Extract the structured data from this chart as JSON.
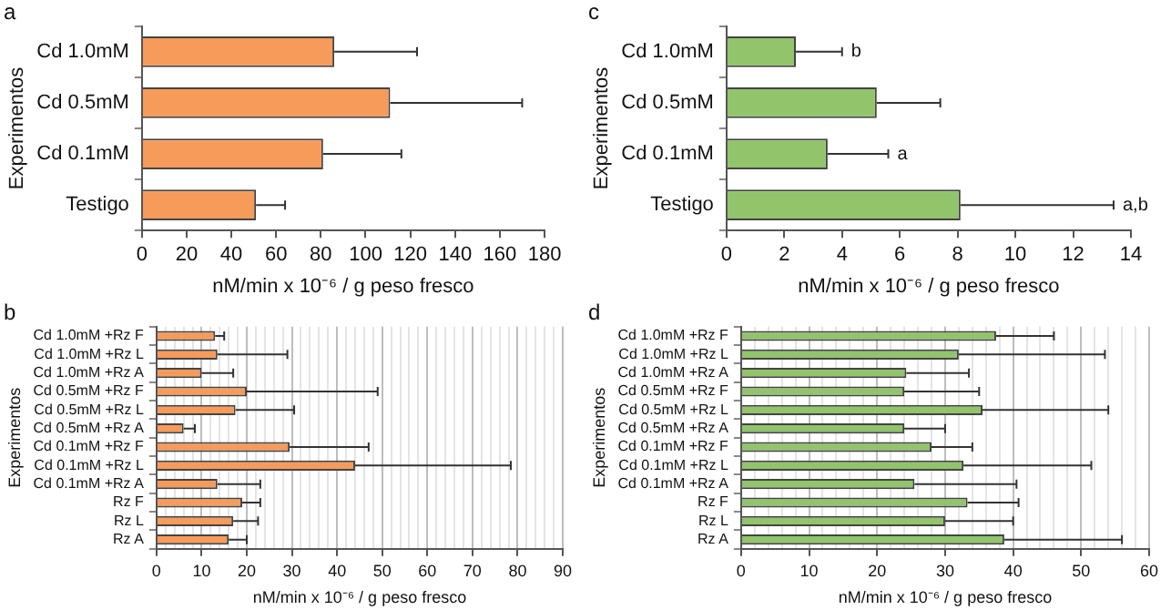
{
  "chart_data": [
    {
      "type": "bar",
      "title": "a",
      "orientation": "horizontal",
      "xlabel": "nM/min x 10⁻⁶ / g peso fresco",
      "ylabel": "Experimentos",
      "categories": [
        "Cd 1.0mM",
        "Cd 0.5mM",
        "Cd 0.1mM",
        "Testigo"
      ],
      "values": [
        86,
        111,
        81,
        51
      ],
      "errors": [
        [
          86,
          123
        ],
        [
          111,
          170
        ],
        [
          81,
          116
        ],
        [
          51,
          64
        ]
      ],
      "color": "#f79b5b",
      "xlim": [
        0,
        180
      ],
      "xticks": [
        0,
        20,
        40,
        60,
        80,
        100,
        120,
        140,
        160,
        180
      ],
      "grid": false,
      "legend": false
    },
    {
      "type": "bar",
      "title": "c",
      "orientation": "horizontal",
      "xlabel": "nM/min x 10⁻⁶ / g peso fresco",
      "ylabel": "Experimentos",
      "categories": [
        "Cd 1.0mM",
        "Cd 0.5mM",
        "Cd 0.1mM",
        "Testigo"
      ],
      "values": [
        2.4,
        5.2,
        3.5,
        8.1
      ],
      "errors": [
        [
          2.4,
          4.0
        ],
        [
          5.2,
          7.4
        ],
        [
          3.5,
          5.6
        ],
        [
          8.1,
          13.4
        ]
      ],
      "color": "#92c46c",
      "xlim": [
        0,
        14
      ],
      "xticks": [
        0,
        2,
        4,
        6,
        8,
        10,
        12,
        14
      ],
      "grid": false,
      "legend": false,
      "annotations": [
        {
          "text": "b",
          "x": 4.0,
          "y": "Cd 1.0mM"
        },
        {
          "text": "a",
          "x": 5.6,
          "y": "Cd 0.1mM"
        },
        {
          "text": "a,b",
          "x": 13.4,
          "y": "Testigo"
        }
      ]
    },
    {
      "type": "bar",
      "title": "b",
      "orientation": "horizontal",
      "xlabel": "nM/min x 10⁻⁶ / g peso fresco",
      "ylabel": "Experimentos",
      "categories": [
        "Cd 1.0mM +Rz F",
        "Cd 1.0mM +Rz L",
        "Cd 1.0mM +Rz A",
        "Cd 0.5mM +Rz F",
        "Cd 0.5mM +Rz L",
        "Cd 0.5mM +Rz A",
        "Cd 0.1mM +Rz F",
        "Cd 0.1mM +Rz L",
        "Cd 0.1mM +Rz A",
        "Rz F",
        "Rz L",
        "Rz A"
      ],
      "values": [
        13,
        13.5,
        10,
        20,
        17.5,
        6,
        29.5,
        44,
        13.5,
        19,
        17,
        16
      ],
      "errors": [
        [
          13,
          15
        ],
        [
          13.5,
          29
        ],
        [
          10,
          17
        ],
        [
          20,
          49
        ],
        [
          17.5,
          30.5
        ],
        [
          6,
          8.5
        ],
        [
          29.5,
          47
        ],
        [
          44,
          78.5
        ],
        [
          13.5,
          23
        ],
        [
          19,
          23
        ],
        [
          17,
          22.5
        ],
        [
          16,
          20
        ]
      ],
      "color": "#f79b5b",
      "xlim": [
        0,
        90
      ],
      "xticks": [
        0,
        {
          "value": 2,
          "label": null
        },
        {
          "value": 4,
          "label": null
        },
        {
          "value": 6,
          "label": null
        },
        {
          "value": 8,
          "label": null
        },
        10,
        {
          "value": 12,
          "label": null
        },
        {
          "value": 14,
          "label": null
        },
        {
          "value": 16,
          "label": null
        },
        {
          "value": 18,
          "label": null
        },
        20,
        {
          "value": 22,
          "label": null
        },
        {
          "value": 24,
          "label": null
        },
        {
          "value": 26,
          "label": null
        },
        {
          "value": 28,
          "label": null
        },
        30,
        {
          "value": 32,
          "label": null
        },
        {
          "value": 34,
          "label": null
        },
        {
          "value": 36,
          "label": null
        },
        {
          "value": 38,
          "label": null
        },
        40,
        {
          "value": 42,
          "label": null
        },
        {
          "value": 44,
          "label": null
        },
        {
          "value": 46,
          "label": null
        },
        {
          "value": 48,
          "label": null
        },
        50,
        {
          "value": 52,
          "label": null
        },
        {
          "value": 54,
          "label": null
        },
        {
          "value": 56,
          "label": null
        },
        {
          "value": 58,
          "label": null
        },
        60,
        {
          "value": 62,
          "label": null
        },
        {
          "value": 64,
          "label": null
        },
        {
          "value": 66,
          "label": null
        },
        {
          "value": 68,
          "label": null
        },
        70,
        {
          "value": 72,
          "label": null
        },
        {
          "value": 74,
          "label": null
        },
        {
          "value": 76,
          "label": null
        },
        {
          "value": 78,
          "label": null
        },
        80,
        {
          "value": 82,
          "label": null
        },
        {
          "value": 84,
          "label": null
        },
        {
          "value": 86,
          "label": null
        },
        {
          "value": 88,
          "label": null
        },
        90
      ],
      "grid": "x",
      "legend": false
    },
    {
      "type": "bar",
      "title": "d",
      "orientation": "horizontal",
      "xlabel": "nM/min x 10⁻⁶ / g peso fresco",
      "ylabel": "Experimentos",
      "categories": [
        "Cd 1.0mM +Rz F",
        "Cd 1.0mM +Rz L",
        "Cd 1.0mM +Rz A",
        "Cd 0.5mM +Rz F",
        "Cd 0.5mM +Rz L",
        "Cd 0.5mM +Rz A",
        "Cd 0.1mM +Rz F",
        "Cd 0.1mM +Rz L",
        "Cd 0.1mM +Rz A",
        "Rz F",
        "Rz L",
        "Rz A"
      ],
      "values": [
        37.5,
        32,
        24.3,
        24,
        35.5,
        24,
        28,
        32.7,
        25.5,
        33.3,
        30,
        38.7
      ],
      "errors": [
        [
          37.5,
          46
        ],
        [
          32,
          53.5
        ],
        [
          24.3,
          33.5
        ],
        [
          24,
          35
        ],
        [
          35.5,
          54
        ],
        [
          24,
          30
        ],
        [
          28,
          34
        ],
        [
          32.7,
          51.5
        ],
        [
          25.5,
          40.5
        ],
        [
          33.3,
          40.8
        ],
        [
          30,
          40
        ],
        [
          38.7,
          56
        ]
      ],
      "color": "#92c46c",
      "xlim": [
        0,
        60
      ],
      "xticks": [
        0,
        {
          "value": 2,
          "label": null
        },
        {
          "value": 4,
          "label": null
        },
        {
          "value": 6,
          "label": null
        },
        {
          "value": 8,
          "label": null
        },
        10,
        {
          "value": 12,
          "label": null
        },
        {
          "value": 14,
          "label": null
        },
        {
          "value": 16,
          "label": null
        },
        {
          "value": 18,
          "label": null
        },
        20,
        {
          "value": 22,
          "label": null
        },
        {
          "value": 24,
          "label": null
        },
        {
          "value": 26,
          "label": null
        },
        {
          "value": 28,
          "label": null
        },
        30,
        {
          "value": 32,
          "label": null
        },
        {
          "value": 34,
          "label": null
        },
        {
          "value": 36,
          "label": null
        },
        {
          "value": 38,
          "label": null
        },
        40,
        {
          "value": 42,
          "label": null
        },
        {
          "value": 44,
          "label": null
        },
        {
          "value": 46,
          "label": null
        },
        {
          "value": 48,
          "label": null
        },
        50,
        {
          "value": 52,
          "label": null
        },
        {
          "value": 54,
          "label": null
        },
        {
          "value": 56,
          "label": null
        },
        {
          "value": 58,
          "label": null
        },
        60
      ],
      "grid": "x",
      "legend": false
    }
  ]
}
